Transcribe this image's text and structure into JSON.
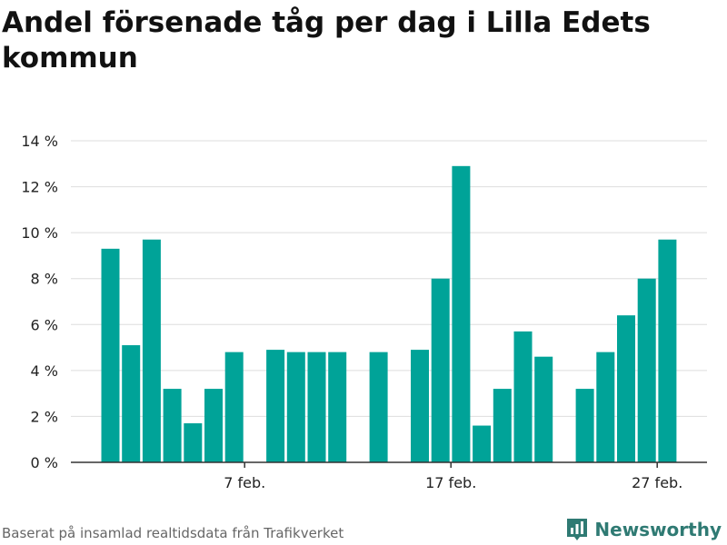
{
  "title": "Andel försenade tåg per dag i Lilla Edets kommun",
  "footer": {
    "source": "Baserat på insamlad realtidsdata från Trafikverket",
    "brand": "Newsworthy",
    "brand_icon": "bar-chart-logo-icon"
  },
  "colors": {
    "bar": "#00a398",
    "grid": "#dddddd",
    "axis": "#333333",
    "brand": "#2f7a73"
  },
  "chart_data": {
    "type": "bar",
    "title": "Andel försenade tåg per dag i Lilla Edets kommun",
    "xlabel": "",
    "ylabel": "",
    "unit": "%",
    "ylim": [
      0,
      14
    ],
    "yticks": [
      0,
      2,
      4,
      6,
      8,
      10,
      12,
      14
    ],
    "ytick_labels": [
      "0 %",
      "2 %",
      "4 %",
      "6 %",
      "8 %",
      "10 %",
      "12 %",
      "14 %"
    ],
    "grid": true,
    "x_day_ticks": [
      7,
      17,
      27
    ],
    "x_tick_labels": [
      "7 feb.",
      "17 feb.",
      "27 feb."
    ],
    "days": [
      1,
      2,
      3,
      4,
      5,
      6,
      7,
      8,
      9,
      10,
      11,
      12,
      13,
      14,
      15,
      16,
      17,
      18,
      19,
      20,
      21,
      22,
      23,
      24,
      25,
      26,
      27,
      28,
      29
    ],
    "values": [
      9.3,
      5.1,
      9.7,
      3.2,
      1.7,
      3.2,
      4.8,
      null,
      4.9,
      4.8,
      4.8,
      4.8,
      null,
      4.8,
      null,
      4.9,
      8.0,
      12.9,
      1.6,
      3.2,
      5.7,
      4.6,
      null,
      3.2,
      4.8,
      6.4,
      8.0,
      9.7,
      null
    ]
  }
}
